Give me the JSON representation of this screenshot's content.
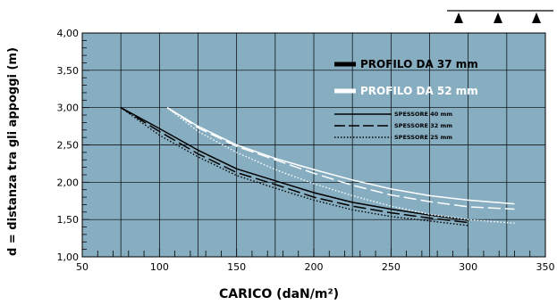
{
  "chart_data": {
    "type": "line",
    "xlabel": "CARICO (daN/m²)",
    "ylabel": "d = distanza tra gli appoggi (m)",
    "xlim": [
      50,
      350
    ],
    "ylim": [
      1.0,
      4.0
    ],
    "x_ticks": [
      "50",
      "100",
      "150",
      "200",
      "250",
      "300",
      "350"
    ],
    "y_ticks": [
      "1,00",
      "1,50",
      "2,00",
      "2,50",
      "3,00",
      "3,50",
      "4,00"
    ],
    "grid": true,
    "background_color": "#86adc0",
    "support_markers": 3,
    "legend": {
      "profiles": [
        {
          "label": "PROFILO DA 37 mm",
          "color": "#000000"
        },
        {
          "label": "PROFILO DA 52 mm",
          "color": "#ffffff"
        }
      ],
      "thicknesses": [
        {
          "label": "SPESSORE 40 mm",
          "style": "solid"
        },
        {
          "label": "SPESSORE 32 mm",
          "style": "dashed"
        },
        {
          "label": "SPESSORE 25 mm",
          "style": "dotted"
        }
      ]
    },
    "series": [
      {
        "name": "PROFILO DA 37 mm — SPESSORE 40 mm",
        "color": "#000000",
        "style": "solid",
        "x": [
          75,
          100,
          125,
          150,
          175,
          200,
          225,
          250,
          275,
          300
        ],
        "y": [
          3.0,
          2.72,
          2.43,
          2.18,
          2.02,
          1.86,
          1.73,
          1.64,
          1.56,
          1.49
        ]
      },
      {
        "name": "PROFILO DA 37 mm — SPESSORE 32 mm",
        "color": "#000000",
        "style": "dashed",
        "x": [
          75,
          100,
          125,
          150,
          175,
          200,
          225,
          250,
          275,
          300
        ],
        "y": [
          3.0,
          2.68,
          2.38,
          2.13,
          1.97,
          1.8,
          1.68,
          1.59,
          1.52,
          1.46
        ]
      },
      {
        "name": "PROFILO DA 37 mm — SPESSORE 25 mm",
        "color": "#000000",
        "style": "dotted",
        "x": [
          75,
          100,
          125,
          150,
          175,
          200,
          225,
          250,
          275,
          300
        ],
        "y": [
          3.0,
          2.63,
          2.34,
          2.09,
          1.92,
          1.76,
          1.63,
          1.54,
          1.48,
          1.42
        ]
      },
      {
        "name": "PROFILO DA 52 mm — SPESSORE 40 mm",
        "color": "#ffffff",
        "style": "solid",
        "x": [
          105,
          125,
          150,
          175,
          200,
          225,
          250,
          275,
          300,
          330
        ],
        "y": [
          3.0,
          2.75,
          2.5,
          2.32,
          2.17,
          2.03,
          1.91,
          1.82,
          1.76,
          1.71
        ]
      },
      {
        "name": "PROFILO DA 52 mm — SPESSORE 32 mm",
        "color": "#ffffff",
        "style": "dashed",
        "x": [
          105,
          125,
          150,
          175,
          200,
          225,
          250,
          275,
          300,
          330
        ],
        "y": [
          3.0,
          2.73,
          2.48,
          2.3,
          2.12,
          1.96,
          1.83,
          1.74,
          1.67,
          1.64
        ]
      },
      {
        "name": "PROFILO DA 52 mm — SPESSORE 25 mm",
        "color": "#ffffff",
        "style": "dotted",
        "x": [
          105,
          125,
          150,
          175,
          200,
          225,
          250,
          275,
          300,
          330
        ],
        "y": [
          3.0,
          2.68,
          2.4,
          2.17,
          1.98,
          1.82,
          1.68,
          1.57,
          1.5,
          1.45
        ]
      }
    ]
  }
}
